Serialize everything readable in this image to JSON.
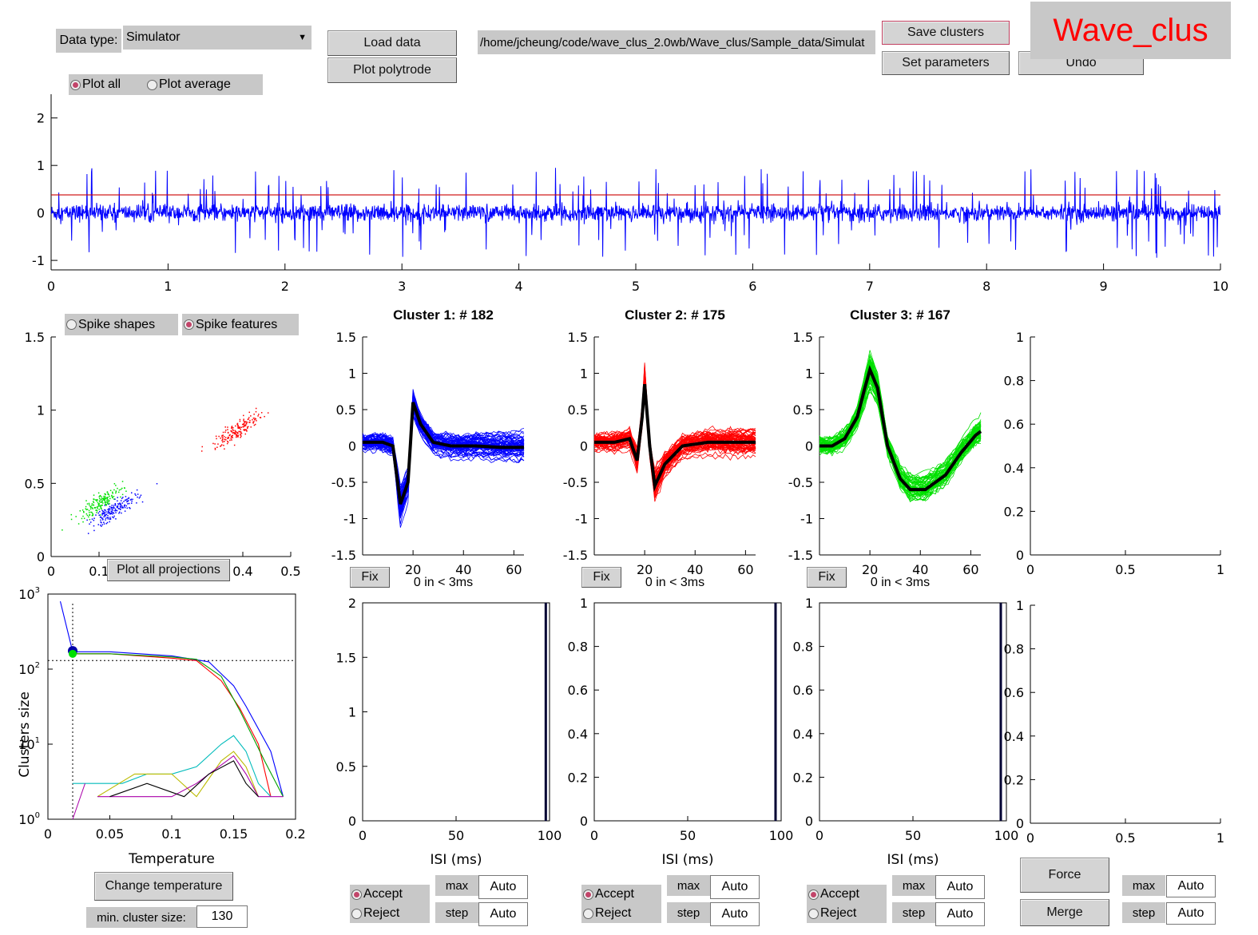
{
  "top": {
    "data_type_label": "Data type:",
    "data_type_value": "Simulator",
    "load_data": "Load data",
    "plot_polytrode": "Plot polytrode",
    "file_path": "/home/jcheung/code/wave_clus_2.0wb/Wave_clus/Sample_data/Simulat",
    "save_clusters": "Save clusters",
    "set_parameters": "Set parameters",
    "undo": "Undo",
    "app_title": "Wave_clus",
    "plot_all": "Plot all",
    "plot_average": "Plot average"
  },
  "features": {
    "spike_shapes": "Spike shapes",
    "spike_features": "Spike features",
    "plot_all_projections": "Plot all projections"
  },
  "temperature": {
    "xlabel": "Temperature",
    "ylabel": "Clusters size",
    "change_temperature": "Change temperature",
    "min_cluster_label": "min. cluster size:",
    "min_cluster_value": "130"
  },
  "clusters": [
    {
      "title": "Cluster 1:  # 182",
      "isi_text": "0 in < 3ms",
      "fix": "Fix",
      "accept": "Accept",
      "reject": "Reject",
      "max_label": "max",
      "max_value": "Auto",
      "step_label": "step",
      "step_value": "Auto",
      "isi_xlabel": "ISI (ms)"
    },
    {
      "title": "Cluster 2:  # 175",
      "isi_text": "0 in < 3ms",
      "fix": "Fix",
      "accept": "Accept",
      "reject": "Reject",
      "max_label": "max",
      "max_value": "Auto",
      "step_label": "step",
      "step_value": "Auto",
      "isi_xlabel": "ISI (ms)"
    },
    {
      "title": "Cluster 3:  # 167",
      "isi_text": "0 in < 3ms",
      "fix": "Fix",
      "accept": "Accept",
      "reject": "Reject",
      "max_label": "max",
      "max_value": "Auto",
      "step_label": "step",
      "step_value": "Auto",
      "isi_xlabel": "ISI (ms)"
    }
  ],
  "extra": {
    "force": "Force",
    "merge": "Merge",
    "max_label": "max",
    "max_value": "Auto",
    "step_label": "step",
    "step_value": "Auto"
  },
  "colors": {
    "cluster1": "#0000ff",
    "cluster2": "#ff0000",
    "cluster3": "#00e000",
    "threshold": "#cc0000",
    "trace": "#0000ff",
    "title_red": "#ff0000"
  },
  "chart_data": [
    {
      "type": "line",
      "name": "signal_trace",
      "xlim": [
        0,
        10
      ],
      "ylim": [
        -1.2,
        2.5
      ],
      "x_ticks": [
        "0",
        "1",
        "2",
        "3",
        "4",
        "5",
        "6",
        "7",
        "8",
        "9",
        "10"
      ],
      "y_ticks": [
        "-1",
        "0",
        "1",
        "2"
      ],
      "threshold": 0.38
    },
    {
      "type": "scatter",
      "name": "features",
      "xlim": [
        0,
        0.5
      ],
      "ylim": [
        0,
        1.5
      ],
      "x_ticks": [
        "0",
        "0.1",
        "",
        "",
        "0.4",
        "0.5"
      ],
      "y_ticks": [
        "0",
        "0.5",
        "1",
        "1.5"
      ],
      "clusters": [
        {
          "color": "#0000ff",
          "center": [
            0.13,
            0.32
          ],
          "n": 182
        },
        {
          "color": "#ff0000",
          "center": [
            0.39,
            0.87
          ],
          "n": 175
        },
        {
          "color": "#00e000",
          "center": [
            0.1,
            0.37
          ],
          "n": 167
        }
      ]
    },
    {
      "type": "line",
      "name": "temperature_curves",
      "xlim": [
        0,
        0.2
      ],
      "ylim_log": [
        0,
        3
      ],
      "x_ticks": [
        "0",
        "0.05",
        "0.1",
        "0.15",
        "0.2"
      ],
      "y_ticks": [
        "10^0",
        "10^1",
        "10^2",
        "10^3"
      ],
      "selected_temperature": 0.02,
      "min_cluster_size": 130
    },
    {
      "type": "line",
      "name": "spike_shapes",
      "xlim": [
        0,
        64
      ],
      "ylim": [
        -1.5,
        1.5
      ],
      "x_ticks": [
        "20",
        "40",
        "60"
      ],
      "y_ticks": [
        "-1.5",
        "-1",
        "-0.5",
        "0",
        "0.5",
        "1",
        "1.5"
      ],
      "mean_waveforms": [
        {
          "cluster": 1,
          "x": [
            0,
            8,
            12,
            15,
            18,
            20,
            23,
            28,
            35,
            45,
            55,
            64
          ],
          "y": [
            0.05,
            0.05,
            0,
            -0.8,
            -0.5,
            0.6,
            0.3,
            0.05,
            0,
            0,
            -0.02,
            -0.02
          ]
        },
        {
          "cluster": 2,
          "x": [
            0,
            8,
            14,
            17,
            19,
            20,
            22,
            24,
            28,
            35,
            45,
            55,
            64
          ],
          "y": [
            0.05,
            0.05,
            0.1,
            -0.2,
            0.4,
            0.85,
            0,
            -0.55,
            -0.25,
            0,
            0.05,
            0.05,
            0.05
          ]
        },
        {
          "cluster": 3,
          "x": [
            0,
            5,
            10,
            15,
            18,
            20,
            23,
            27,
            32,
            36,
            42,
            50,
            56,
            62,
            64
          ],
          "y": [
            0,
            0,
            0.1,
            0.4,
            0.8,
            1.05,
            0.8,
            0,
            -0.45,
            -0.6,
            -0.6,
            -0.4,
            -0.1,
            0.15,
            0.2
          ]
        }
      ]
    },
    {
      "type": "bar",
      "name": "isi_histograms",
      "xlim": [
        0,
        100
      ],
      "x_ticks": [
        "0",
        "50",
        "100"
      ],
      "axes": [
        {
          "ylim": [
            0,
            2
          ],
          "y_ticks": [
            "0",
            "0.5",
            "1",
            "1.5",
            "2"
          ],
          "bar_x": 98
        },
        {
          "ylim": [
            0,
            1
          ],
          "y_ticks": [
            "0",
            "0.2",
            "0.4",
            "0.6",
            "0.8",
            "1"
          ],
          "bar_x": 97
        },
        {
          "ylim": [
            0,
            1
          ],
          "y_ticks": [
            "0",
            "0.2",
            "0.4",
            "0.6",
            "0.8",
            "1"
          ],
          "bar_x": 97
        }
      ]
    },
    {
      "type": "line",
      "name": "empty_axes",
      "xlim": [
        0,
        1
      ],
      "ylim": [
        0,
        1
      ],
      "x_ticks": [
        "0",
        "0.5",
        "1"
      ],
      "y_ticks": [
        "0",
        "0.2",
        "0.4",
        "0.6",
        "0.8",
        "1"
      ]
    }
  ]
}
